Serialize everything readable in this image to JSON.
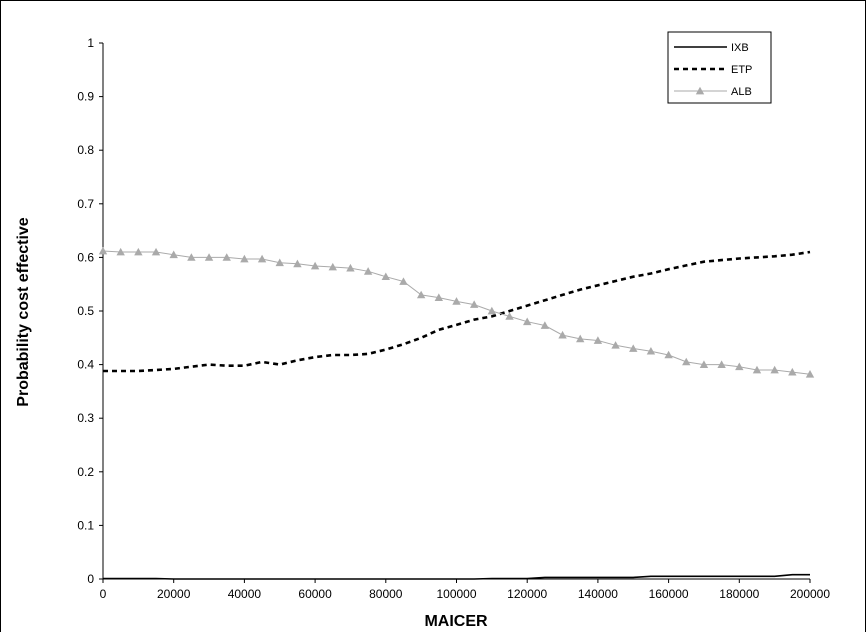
{
  "chart_data": {
    "type": "line",
    "title": "",
    "xlabel": "MAICER",
    "ylabel": "Probability cost effective",
    "xlim": [
      0,
      200000
    ],
    "ylim": [
      0,
      1
    ],
    "grid": false,
    "legend_position": "top-right",
    "x_ticks": [
      "0",
      "20000",
      "40000",
      "60000",
      "80000",
      "100000",
      "120000",
      "140000",
      "160000",
      "180000",
      "200000"
    ],
    "y_ticks": [
      "0",
      "0.1",
      "0.2",
      "0.3",
      "0.4",
      "0.5",
      "0.6",
      "0.7",
      "0.8",
      "0.9",
      "1"
    ],
    "x": [
      0,
      5000,
      10000,
      15000,
      20000,
      25000,
      30000,
      35000,
      40000,
      45000,
      50000,
      55000,
      60000,
      65000,
      70000,
      75000,
      80000,
      85000,
      90000,
      95000,
      100000,
      105000,
      110000,
      115000,
      120000,
      125000,
      130000,
      135000,
      140000,
      145000,
      150000,
      155000,
      160000,
      165000,
      170000,
      175000,
      180000,
      185000,
      190000,
      195000,
      200000
    ],
    "series": [
      {
        "name": "IXB",
        "color": "#000000",
        "style": "solid",
        "values": [
          0.001,
          0.001,
          0.001,
          0.001,
          0.0,
          0.0,
          0.0,
          0.0,
          0.0,
          0.0,
          0.0,
          0.0,
          0.0,
          0.0,
          0.0,
          0.0,
          0.0,
          0.0,
          0.0,
          0.0,
          0.0,
          0.0,
          0.001,
          0.001,
          0.001,
          0.003,
          0.003,
          0.003,
          0.003,
          0.003,
          0.003,
          0.005,
          0.005,
          0.005,
          0.005,
          0.005,
          0.005,
          0.005,
          0.005,
          0.008,
          0.008
        ]
      },
      {
        "name": "ETP",
        "color": "#000000",
        "style": "dotted",
        "values": [
          0.388,
          0.388,
          0.388,
          0.39,
          0.392,
          0.396,
          0.4,
          0.398,
          0.398,
          0.405,
          0.4,
          0.408,
          0.414,
          0.418,
          0.418,
          0.42,
          0.428,
          0.438,
          0.45,
          0.465,
          0.474,
          0.484,
          0.49,
          0.5,
          0.51,
          0.52,
          0.53,
          0.54,
          0.548,
          0.556,
          0.564,
          0.57,
          0.578,
          0.585,
          0.592,
          0.595,
          0.598,
          0.6,
          0.602,
          0.605,
          0.61
        ]
      },
      {
        "name": "ALB",
        "color": "#aaaaaa",
        "style": "solid-triangle",
        "values": [
          0.612,
          0.61,
          0.61,
          0.61,
          0.605,
          0.6,
          0.6,
          0.6,
          0.597,
          0.597,
          0.59,
          0.588,
          0.584,
          0.582,
          0.58,
          0.574,
          0.564,
          0.555,
          0.53,
          0.525,
          0.518,
          0.512,
          0.5,
          0.49,
          0.48,
          0.473,
          0.455,
          0.448,
          0.445,
          0.436,
          0.43,
          0.425,
          0.418,
          0.405,
          0.4,
          0.4,
          0.396,
          0.39,
          0.39,
          0.386,
          0.382
        ]
      }
    ]
  }
}
